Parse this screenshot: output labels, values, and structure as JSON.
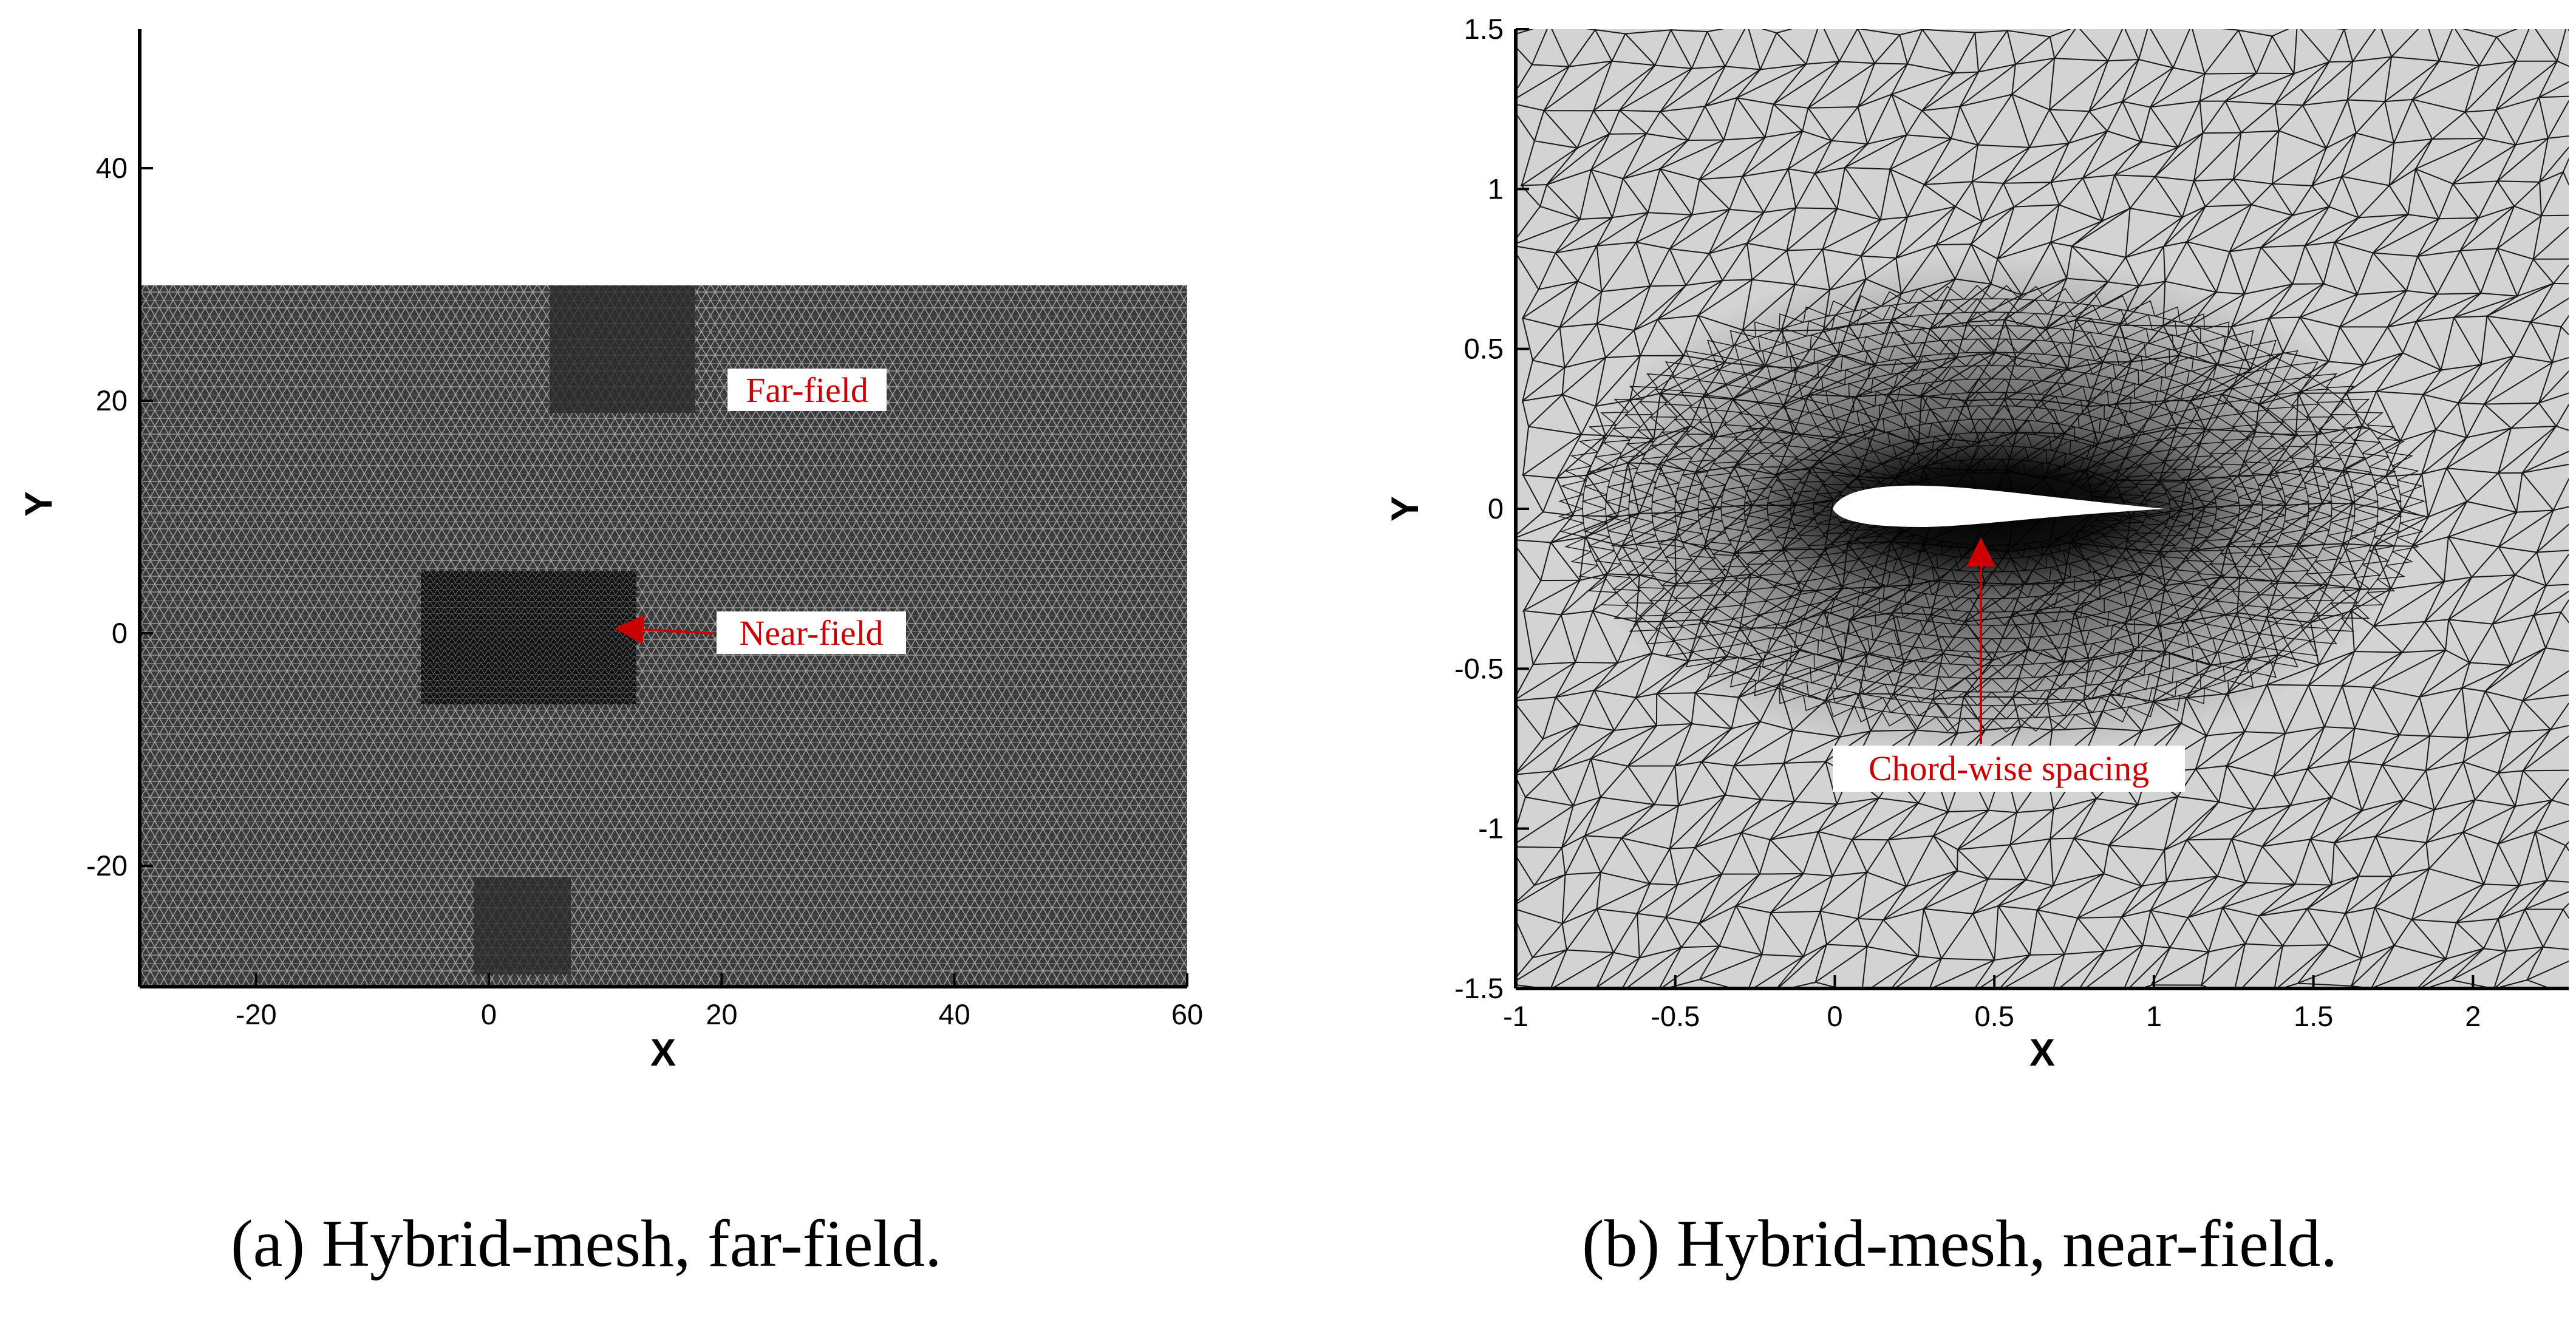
{
  "panels": [
    {
      "id": "far",
      "caption": "(a) Hybrid-mesh, far-field.",
      "xlabel": "X",
      "ylabel": "Y",
      "xticks": [
        "-20",
        "0",
        "20",
        "40",
        "60"
      ],
      "yticks": [
        "-20",
        "0",
        "20",
        "40"
      ],
      "annotations": [
        "Far-field",
        "Near-field"
      ],
      "colors": {
        "mesh_fill": "#3a3a3a",
        "near_fill": "#161616",
        "annotation": "#cc0000"
      }
    },
    {
      "id": "near",
      "caption": "(b) Hybrid-mesh, near-field.",
      "xlabel": "X",
      "ylabel": "Y",
      "xticks": [
        "-1",
        "-0.5",
        "0",
        "0.5",
        "1",
        "1.5",
        "2"
      ],
      "yticks": [
        "-1.5",
        "-1",
        "-0.5",
        "0",
        "0.5",
        "1",
        "1.5"
      ],
      "annotations": [
        "Chord-wise spacing"
      ],
      "colors": {
        "mesh_fill": "#d3d3d3",
        "mesh_line": "#1a1a1a",
        "airfoil": "#ffffff",
        "annotation": "#cc0000"
      }
    }
  ]
}
